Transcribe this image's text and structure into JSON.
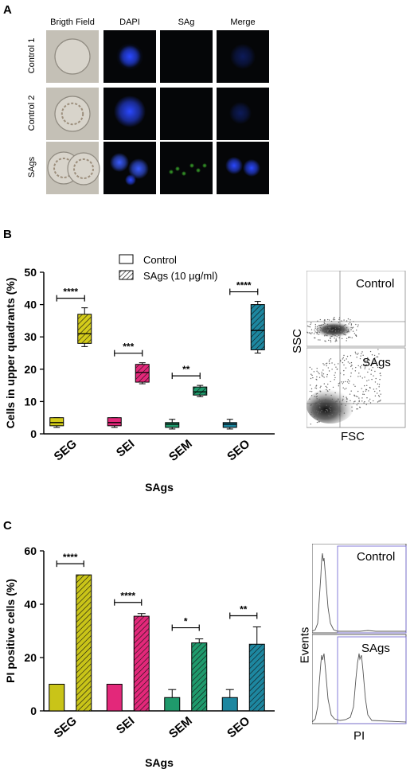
{
  "panel_a": {
    "letter": "A",
    "columns": [
      "Brigth Field",
      "DAPI",
      "SAg",
      "Merge"
    ],
    "rows": [
      "Control 1",
      "Control 2",
      "SAgs"
    ]
  },
  "panel_b": {
    "letter": "B",
    "flow_labels": {
      "top": "Control",
      "bottom": "SAgs",
      "y": "SSC",
      "x": "FSC"
    }
  },
  "panel_c": {
    "letter": "C",
    "hist_labels": {
      "top": "Control",
      "bottom": "SAgs",
      "y": "Events",
      "x": "PI"
    }
  },
  "chart_data": [
    {
      "type": "box",
      "ylabel": "Cells in upper quadrants (%)",
      "xlabel": "SAgs",
      "ylim": [
        0,
        50
      ],
      "yticks": [
        0,
        10,
        20,
        30,
        40,
        50
      ],
      "categories": [
        "SEG",
        "SEI",
        "SEM",
        "SEO"
      ],
      "legend": [
        "Control",
        "SAgs (10 μg/ml)"
      ],
      "colors": [
        "#d4cc1a",
        "#e3287a",
        "#1f9a6c",
        "#1d87a0"
      ],
      "series": [
        {
          "name": "Control",
          "boxes": [
            {
              "min": 2,
              "q1": 2.5,
              "median": 3.5,
              "q3": 5,
              "max": 5
            },
            {
              "min": 2,
              "q1": 2.5,
              "median": 3.5,
              "q3": 5,
              "max": 5
            },
            {
              "min": 1.5,
              "q1": 2,
              "median": 3,
              "q3": 3.5,
              "max": 4.5
            },
            {
              "min": 1.5,
              "q1": 2,
              "median": 3,
              "q3": 3.5,
              "max": 4.5
            }
          ]
        },
        {
          "name": "SAgs (10 μg/ml)",
          "boxes": [
            {
              "min": 27,
              "q1": 28,
              "median": 31,
              "q3": 37,
              "max": 39
            },
            {
              "min": 15.5,
              "q1": 16,
              "median": 19,
              "q3": 21.5,
              "max": 22
            },
            {
              "min": 11.5,
              "q1": 12,
              "median": 13,
              "q3": 14.5,
              "max": 15
            },
            {
              "min": 25,
              "q1": 26,
              "median": 32,
              "q3": 40,
              "max": 41
            }
          ]
        }
      ],
      "significance": [
        "****",
        "***",
        "**",
        "****"
      ]
    },
    {
      "type": "bar",
      "ylabel": "PI positive cells (%)",
      "xlabel": "SAgs",
      "ylim": [
        0,
        60
      ],
      "yticks": [
        0,
        20,
        40,
        60
      ],
      "categories": [
        "SEG",
        "SEI",
        "SEM",
        "SEO"
      ],
      "colors": [
        "#c9c418",
        "#e3287a",
        "#1f9a6c",
        "#1d87a0"
      ],
      "series": [
        {
          "name": "Control",
          "values": [
            10,
            10,
            5,
            5
          ],
          "errors": [
            0,
            0,
            3,
            3
          ]
        },
        {
          "name": "SAgs",
          "values": [
            51,
            35.5,
            25.5,
            25
          ],
          "errors": [
            0,
            1,
            1.5,
            6.5
          ]
        }
      ],
      "significance": [
        "****",
        "****",
        "*",
        "**"
      ]
    }
  ]
}
